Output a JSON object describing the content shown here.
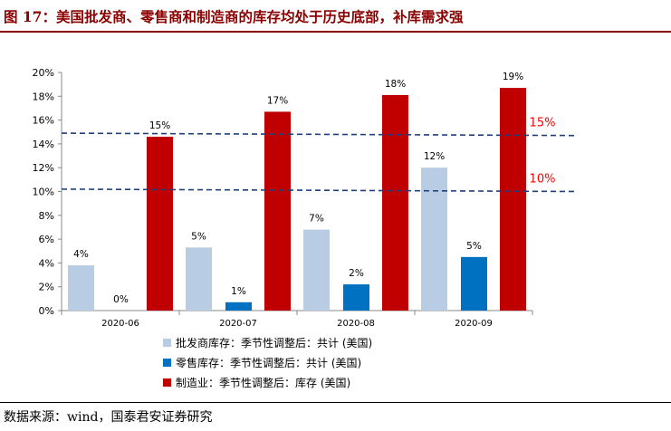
{
  "title": "图 17：美国批发商、零售商和制造商的库存均处于历史底部，补库需求强",
  "source": "数据来源：wind，国泰君安证券研究",
  "colors": {
    "title": "#8b0000",
    "wholesale": "#b8cce4",
    "retail": "#0070c0",
    "manufacturing": "#c00000",
    "refline": "#1f3f7a",
    "reflabel": "#ff0000"
  },
  "chart_data": {
    "type": "bar",
    "categories": [
      "2020-06",
      "2020-07",
      "2020-08",
      "2020-09"
    ],
    "series": [
      {
        "name": "批发商库存：季节性调整后：共计 (美国)",
        "values": [
          3.8,
          5.3,
          6.8,
          12.0
        ],
        "labels": [
          "4%",
          "5%",
          "7%",
          "12%"
        ]
      },
      {
        "name": "零售库存：季节性调整后：共计 (美国)",
        "values": [
          0.0,
          0.7,
          2.2,
          4.5
        ],
        "labels": [
          "0%",
          "1%",
          "2%",
          "5%"
        ]
      },
      {
        "name": "制造业：季节性调整后：库存 (美国)",
        "values": [
          14.6,
          16.7,
          18.1,
          18.7
        ],
        "labels": [
          "15%",
          "17%",
          "18%",
          "19%"
        ]
      }
    ],
    "ylim": [
      0,
      20
    ],
    "yticks": [
      "0%",
      "2%",
      "4%",
      "6%",
      "8%",
      "10%",
      "12%",
      "14%",
      "16%",
      "18%",
      "20%"
    ],
    "reference_lines": [
      {
        "label": "15%",
        "start": 14.9,
        "end": 14.7
      },
      {
        "label": "10%",
        "start": 10.2,
        "end": 10.0
      }
    ],
    "legend_position": "bottom-left",
    "grid": false
  }
}
